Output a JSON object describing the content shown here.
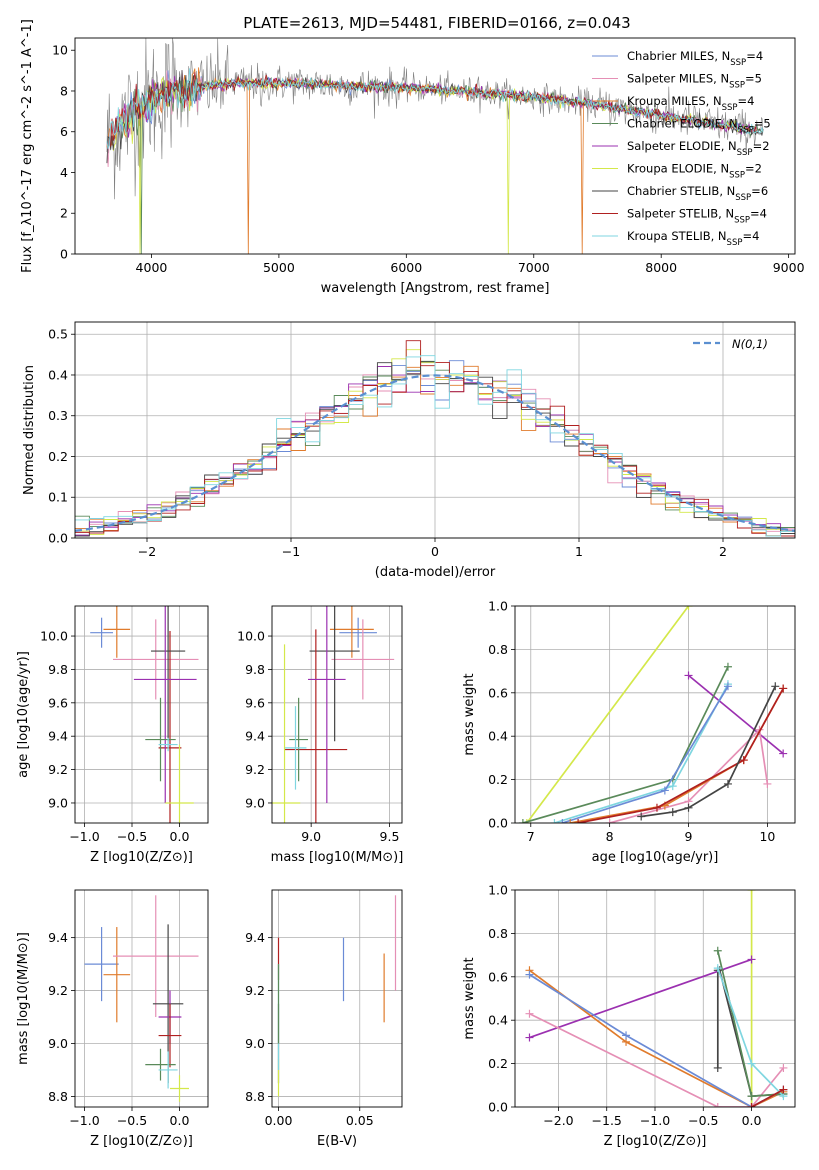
{
  "figure_title": "PLATE=2613, MJD=54481, FIBERID=0166, z=0.043",
  "colors": {
    "Chabrier MILES": "#6b8bd6",
    "Salpeter MILES": "#e58fb5",
    "Kroupa MILES": "#e07b2c",
    "Chabrier ELODIE": "#5a8a5a",
    "Salpeter ELODIE": "#9b30b0",
    "Kroupa ELODIE": "#d4e84a",
    "Chabrier STELIB": "#444444",
    "Salpeter STELIB": "#b02020",
    "Kroupa STELIB": "#7fd6e0",
    "data": "#808080",
    "gaussian": "#5b8fd0"
  },
  "chart_data": [
    {
      "id": "spectrum",
      "type": "line",
      "xlabel": "wavelength [Angstrom, rest frame]",
      "ylabel": "Flux [f_λ10^-17 erg cm^-2 s^-1 A^-1]",
      "xlim": [
        3400,
        9050
      ],
      "ylim": [
        0,
        10.6
      ],
      "xticks": [
        4000,
        5000,
        6000,
        7000,
        8000,
        9000
      ],
      "yticks": [
        0,
        2,
        4,
        6,
        8,
        10
      ],
      "legend_position": "upper-right",
      "legend": [
        {
          "model": "Chabrier MILES",
          "n": 4
        },
        {
          "model": "Salpeter MILES",
          "n": 5
        },
        {
          "model": "Kroupa MILES",
          "n": 4
        },
        {
          "model": "Chabrier ELODIE",
          "n": 5
        },
        {
          "model": "Salpeter ELODIE",
          "n": 2
        },
        {
          "model": "Kroupa ELODIE",
          "n": 2
        },
        {
          "model": "Chabrier STELIB",
          "n": 6
        },
        {
          "model": "Salpeter STELIB",
          "n": 4
        },
        {
          "model": "Kroupa STELIB",
          "n": 4
        }
      ],
      "continuum": [
        [
          3650,
          5.5
        ],
        [
          3750,
          6.3
        ],
        [
          3900,
          7.2
        ],
        [
          4100,
          7.9
        ],
        [
          4300,
          8.1
        ],
        [
          4500,
          8.3
        ],
        [
          4700,
          8.4
        ],
        [
          5000,
          8.4
        ],
        [
          5400,
          8.3
        ],
        [
          5800,
          8.2
        ],
        [
          6200,
          8.1
        ],
        [
          6600,
          7.9
        ],
        [
          7000,
          7.7
        ],
        [
          7400,
          7.4
        ],
        [
          7800,
          7.0
        ],
        [
          8200,
          6.6
        ],
        [
          8500,
          6.3
        ],
        [
          8800,
          6.0
        ]
      ]
    },
    {
      "id": "residuals",
      "type": "histogram",
      "xlabel": "(data-model)/error",
      "ylabel": "Normed distribution",
      "xlim": [
        -2.5,
        2.5
      ],
      "ylim": [
        0,
        0.53
      ],
      "xticks": [
        -2,
        -1,
        0,
        1,
        2
      ],
      "yticks": [
        0.0,
        0.1,
        0.2,
        0.3,
        0.4,
        0.5
      ],
      "grid": true,
      "legend_position": "upper-right",
      "gaussian_label": "N(0,1)",
      "bin_width": 0.1
    },
    {
      "id": "age_vs_Z",
      "type": "errorbar",
      "xlabel": "Z [log10(Z/Z⊙)]",
      "ylabel": "age [log10(age/yr)]",
      "xlim": [
        -1.1,
        0.3
      ],
      "ylim": [
        8.88,
        10.18
      ],
      "xticks": [
        -1.0,
        -0.5,
        0.0
      ],
      "yticks": [
        9.0,
        9.2,
        9.4,
        9.6,
        9.8,
        10.0
      ],
      "grid": true,
      "points": [
        {
          "model": "Chabrier MILES",
          "x": -0.82,
          "y": 10.02,
          "xerr": 0.12,
          "yerr": 0.09
        },
        {
          "model": "Kroupa MILES",
          "x": -0.66,
          "y": 10.04,
          "xerr": 0.14,
          "yerr": 0.17
        },
        {
          "model": "Salpeter MILES",
          "x": -0.25,
          "y": 9.86,
          "xerr": 0.45,
          "yerr": 0.24
        },
        {
          "model": "Salpeter STELIB",
          "x": -0.1,
          "y": 9.33,
          "xerr": 0.12,
          "yerr": 0.7
        },
        {
          "model": "Chabrier STELIB",
          "x": -0.12,
          "y": 9.91,
          "xerr": 0.18,
          "yerr": 0.54
        },
        {
          "model": "Salpeter ELODIE",
          "x": -0.15,
          "y": 9.74,
          "xerr": 0.33,
          "yerr": 0.74
        },
        {
          "model": "Chabrier ELODIE",
          "x": -0.2,
          "y": 9.38,
          "xerr": 0.16,
          "yerr": 0.25
        },
        {
          "model": "Kroupa STELIB",
          "x": -0.12,
          "y": 9.35,
          "xerr": 0.1,
          "yerr": 0.04
        },
        {
          "model": "Kroupa ELODIE",
          "x": 0.0,
          "y": 9.0,
          "xerr": 0.15,
          "yerr": 0.35
        }
      ]
    },
    {
      "id": "age_vs_mass",
      "type": "errorbar",
      "xlabel": "mass [log10(M/M⊙)]",
      "ylabel": "",
      "xlim": [
        8.75,
        9.58
      ],
      "ylim": [
        8.88,
        10.18
      ],
      "xticks": [
        9.0,
        9.5
      ],
      "yticks": [
        9.0,
        9.2,
        9.4,
        9.6,
        9.8,
        10.0
      ],
      "grid": true,
      "points": [
        {
          "model": "Chabrier MILES",
          "x": 9.3,
          "y": 10.02,
          "xerr": 0.12,
          "yerr": 0.09
        },
        {
          "model": "Kroupa MILES",
          "x": 9.26,
          "y": 10.04,
          "xerr": 0.14,
          "yerr": 0.17
        },
        {
          "model": "Salpeter MILES",
          "x": 9.33,
          "y": 9.86,
          "xerr": 0.2,
          "yerr": 0.24
        },
        {
          "model": "Chabrier STELIB",
          "x": 9.15,
          "y": 9.91,
          "xerr": 0.16,
          "yerr": 0.54
        },
        {
          "model": "Salpeter STELIB",
          "x": 9.03,
          "y": 9.32,
          "xerr": 0.2,
          "yerr": 0.72
        },
        {
          "model": "Salpeter ELODIE",
          "x": 9.1,
          "y": 9.74,
          "xerr": 0.12,
          "yerr": 0.74
        },
        {
          "model": "Chabrier ELODIE",
          "x": 8.92,
          "y": 9.38,
          "xerr": 0.06,
          "yerr": 0.25
        },
        {
          "model": "Kroupa STELIB",
          "x": 8.9,
          "y": 9.33,
          "xerr": 0.07,
          "yerr": 0.25
        },
        {
          "model": "Kroupa ELODIE",
          "x": 8.83,
          "y": 9.0,
          "xerr": 0.1,
          "yerr": 0.95
        }
      ]
    },
    {
      "id": "weight_vs_age",
      "type": "line",
      "xlabel": "age [log10(age/yr)]",
      "ylabel": "mass weight",
      "xlim": [
        6.8,
        10.35
      ],
      "ylim": [
        0,
        1.0
      ],
      "xticks": [
        7,
        8,
        9,
        10
      ],
      "yticks": [
        0.0,
        0.2,
        0.4,
        0.6,
        0.8,
        1.0
      ],
      "grid": true,
      "series": [
        {
          "model": "Kroupa ELODIE",
          "x": [
            6.95,
            9.0
          ],
          "y": [
            0.0,
            1.0
          ]
        },
        {
          "model": "Salpeter ELODIE",
          "x": [
            9.0,
            10.2
          ],
          "y": [
            0.68,
            0.32
          ]
        },
        {
          "model": "Chabrier ELODIE",
          "x": [
            6.9,
            8.8,
            9.5
          ],
          "y": [
            0.0,
            0.2,
            0.72
          ]
        },
        {
          "model": "Kroupa STELIB",
          "x": [
            7.3,
            8.8,
            9.5
          ],
          "y": [
            0.0,
            0.17,
            0.64
          ]
        },
        {
          "model": "Chabrier MILES",
          "x": [
            7.4,
            8.7,
            9.5
          ],
          "y": [
            0.0,
            0.15,
            0.63
          ]
        },
        {
          "model": "Salpeter MILES",
          "x": [
            8.0,
            9.0,
            9.9,
            10.0
          ],
          "y": [
            0.0,
            0.1,
            0.43,
            0.18
          ]
        },
        {
          "model": "Kroupa MILES",
          "x": [
            7.5,
            8.7,
            9.7,
            10.2
          ],
          "y": [
            0.0,
            0.08,
            0.29,
            0.62
          ]
        },
        {
          "model": "Salpeter STELIB",
          "x": [
            7.6,
            8.6,
            9.7,
            10.2
          ],
          "y": [
            0.0,
            0.07,
            0.29,
            0.62
          ]
        },
        {
          "model": "Chabrier STELIB",
          "x": [
            8.4,
            8.8,
            9.0,
            9.5,
            10.1
          ],
          "y": [
            0.03,
            0.05,
            0.07,
            0.18,
            0.63
          ]
        }
      ]
    },
    {
      "id": "mass_vs_Z",
      "type": "errorbar",
      "xlabel": "Z [log10(Z/Z⊙)]",
      "ylabel": "mass [log10(M/M⊙)]",
      "xlim": [
        -1.1,
        0.3
      ],
      "ylim": [
        8.76,
        9.58
      ],
      "xticks": [
        -1.0,
        -0.5,
        0.0
      ],
      "yticks": [
        8.8,
        9.0,
        9.2,
        9.4
      ],
      "grid": true,
      "points": [
        {
          "model": "Chabrier MILES",
          "x": -0.82,
          "y": 9.3,
          "xerr": 0.18,
          "yerr": 0.14
        },
        {
          "model": "Kroupa MILES",
          "x": -0.66,
          "y": 9.26,
          "xerr": 0.14,
          "yerr": 0.18
        },
        {
          "model": "Salpeter MILES",
          "x": -0.25,
          "y": 9.33,
          "xerr": 0.45,
          "yerr": 0.23
        },
        {
          "model": "Chabrier STELIB",
          "x": -0.12,
          "y": 9.15,
          "xerr": 0.16,
          "yerr": 0.3
        },
        {
          "model": "Salpeter ELODIE",
          "x": -0.1,
          "y": 9.1,
          "xerr": 0.12,
          "yerr": 0.1
        },
        {
          "model": "Salpeter STELIB",
          "x": -0.1,
          "y": 9.03,
          "xerr": 0.12,
          "yerr": 0.12
        },
        {
          "model": "Chabrier ELODIE",
          "x": -0.2,
          "y": 8.92,
          "xerr": 0.16,
          "yerr": 0.06
        },
        {
          "model": "Kroupa STELIB",
          "x": -0.12,
          "y": 8.9,
          "xerr": 0.1,
          "yerr": 0.07
        },
        {
          "model": "Kroupa ELODIE",
          "x": 0.0,
          "y": 8.83,
          "xerr": 0.1,
          "yerr": 0.05
        }
      ]
    },
    {
      "id": "mass_vs_ebv",
      "type": "errorbar",
      "xlabel": "E(B-V)",
      "ylabel": "",
      "xlim": [
        -0.004,
        0.076
      ],
      "ylim": [
        8.76,
        9.58
      ],
      "xticks": [
        0.0,
        0.05
      ],
      "yticks": [
        8.8,
        9.0,
        9.2,
        9.4
      ],
      "grid": true,
      "points": [
        {
          "model": "Chabrier MILES",
          "x": 0.04,
          "y": 9.28,
          "xerr": 0,
          "yerr": 0.12
        },
        {
          "model": "Kroupa MILES",
          "x": 0.065,
          "y": 9.21,
          "xerr": 0,
          "yerr": 0.13
        },
        {
          "model": "Salpeter MILES",
          "x": 0.072,
          "y": 9.38,
          "xerr": 0,
          "yerr": 0.18
        },
        {
          "model": "Salpeter STELIB",
          "x": 0.0,
          "y": 9.32,
          "xerr": 0,
          "yerr": 0.08
        },
        {
          "model": "Chabrier STELIB",
          "x": 0.0,
          "y": 9.0,
          "xerr": 0,
          "yerr": 0.15
        },
        {
          "model": "Kroupa ELODIE",
          "x": 0.0,
          "y": 8.87,
          "xerr": 0,
          "yerr": 0.07
        },
        {
          "model": "Kroupa STELIB",
          "x": 0.0,
          "y": 9.1,
          "xerr": 0,
          "yerr": 0.2
        },
        {
          "model": "Chabrier ELODIE",
          "x": 0.0,
          "y": 9.15,
          "xerr": 0,
          "yerr": 0.15
        }
      ]
    },
    {
      "id": "weight_vs_Z",
      "type": "line",
      "xlabel": "Z [log10(Z/Z⊙)]",
      "ylabel": "mass weight",
      "xlim": [
        -2.45,
        0.45
      ],
      "ylim": [
        0,
        1.0
      ],
      "xticks": [
        -2.0,
        -1.5,
        -1.0,
        -0.5,
        0.0
      ],
      "yticks": [
        0.0,
        0.2,
        0.4,
        0.6,
        0.8,
        1.0
      ],
      "grid": true,
      "series": [
        {
          "model": "Kroupa ELODIE",
          "x": [
            0.0,
            0.0
          ],
          "y": [
            0.0,
            1.0
          ]
        },
        {
          "model": "Salpeter ELODIE",
          "x": [
            -2.3,
            0.0
          ],
          "y": [
            0.32,
            0.68
          ]
        },
        {
          "model": "Kroupa MILES",
          "x": [
            -2.3,
            -1.3,
            0.0,
            0.33
          ],
          "y": [
            0.63,
            0.3,
            0.0,
            0.07
          ]
        },
        {
          "model": "Chabrier MILES",
          "x": [
            -2.3,
            -1.3,
            0.0,
            0.33
          ],
          "y": [
            0.61,
            0.33,
            0.0,
            0.08
          ]
        },
        {
          "model": "Salpeter MILES",
          "x": [
            -2.3,
            -0.35,
            0.0,
            0.33
          ],
          "y": [
            0.43,
            0.0,
            0.0,
            0.18
          ]
        },
        {
          "model": "Chabrier STELIB",
          "x": [
            -0.35,
            -0.35,
            -0.33,
            0.0,
            0.33
          ],
          "y": [
            0.18,
            0.63,
            0.63,
            0.05,
            0.06
          ]
        },
        {
          "model": "Chabrier ELODIE",
          "x": [
            -0.35,
            0.0,
            0.33
          ],
          "y": [
            0.72,
            0.05,
            0.06
          ]
        },
        {
          "model": "Kroupa STELIB",
          "x": [
            -0.35,
            0.0,
            0.33
          ],
          "y": [
            0.64,
            0.2,
            0.05
          ]
        },
        {
          "model": "Salpeter STELIB",
          "x": [
            0.0,
            0.33
          ],
          "y": [
            0.0,
            0.08
          ]
        }
      ]
    }
  ]
}
